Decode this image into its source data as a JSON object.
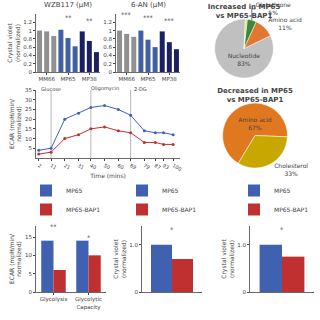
{
  "chart_data": [
    {
      "type": "bar",
      "title": "WZB117 (μM)",
      "categories": [
        null,
        "MM66",
        null,
        null,
        "MP65",
        null,
        null,
        "MP38",
        null
      ],
      "values": [
        1.0,
        0.98,
        0.87,
        1.02,
        0.82,
        0.62,
        0.98,
        0.75,
        0.48
      ],
      "colors": [
        "#909090",
        "#909090",
        "#909090",
        "#4060a0",
        "#4060a0",
        "#4060a0",
        "#1a2060",
        "#1a2060",
        "#1a2060"
      ],
      "ylabel": "Crystal violet\n(normalized)",
      "ylim": [
        0,
        1.4
      ],
      "yticks": [
        0,
        0.2,
        0.4,
        0.6,
        0.8,
        1,
        1.2
      ],
      "grid": false,
      "annotations": [
        {
          "text": "**",
          "x": 4,
          "y": 1.16
        },
        {
          "text": "**",
          "x": 7,
          "y": 1.09
        }
      ]
    },
    {
      "type": "bar",
      "title": "6-AN (μM)",
      "categories": [
        null,
        "MM66",
        null,
        null,
        "MP65",
        null,
        null,
        "MP38",
        null
      ],
      "values": [
        1.0,
        0.92,
        0.85,
        1.0,
        0.78,
        0.6,
        0.98,
        0.72,
        0.55
      ],
      "colors": [
        "#909090",
        "#909090",
        "#909090",
        "#4060a0",
        "#4060a0",
        "#4060a0",
        "#1a2060",
        "#1a2060",
        "#1a2060"
      ],
      "ylim": [
        0,
        1.4
      ],
      "yticks": [
        0,
        0.2,
        0.4,
        0.6,
        0.8,
        1,
        1.2
      ],
      "grid": false,
      "annotations": [
        {
          "text": "***",
          "x": 4,
          "y": 1.16
        },
        {
          "text": "***",
          "x": 7,
          "y": 1.09
        },
        {
          "text": "***",
          "x": 1,
          "y": 1.22
        }
      ]
    },
    {
      "type": "line",
      "x": [
        2,
        11,
        21,
        31,
        40,
        50,
        60,
        69,
        79,
        87,
        93,
        100
      ],
      "series": [
        {
          "color": "#4060c0",
          "values": [
            4,
            5,
            20,
            23,
            26,
            27,
            25,
            22,
            14,
            13,
            13,
            12
          ]
        },
        {
          "color": "#c03030",
          "values": [
            2,
            3,
            10,
            12,
            15,
            16,
            14,
            13,
            8,
            8,
            7,
            7
          ]
        }
      ],
      "marker": "circle",
      "xlim": [
        0,
        105
      ],
      "xticks": [
        2,
        11,
        21,
        31,
        40,
        50,
        60,
        69,
        79,
        87,
        93,
        100
      ],
      "ylim": [
        0,
        35
      ],
      "yticks": [
        5,
        10,
        15,
        20,
        25,
        30,
        35
      ],
      "xlabel": "Time (mins)",
      "ylabel": "ECAR (mpH/min/\nnormalized)",
      "vlines": [
        11,
        40,
        69
      ],
      "grid": false,
      "annotations": [
        {
          "text": "Glucose",
          "x": 2,
          "y": 33
        },
        {
          "text": "Oligomycin",
          "x": 39,
          "y": 33
        },
        {
          "text": "2-DG",
          "x": 70,
          "y": 33
        }
      ]
    },
    {
      "type": "bar",
      "categories": [
        "Glycolysis",
        "Glycolytic\nCapacity"
      ],
      "series": [
        {
          "name": "MP65",
          "color": "#4060b0",
          "values": [
            14,
            14
          ]
        },
        {
          "name": "MP65-BAP1",
          "color": "#c03030",
          "values": [
            6,
            10
          ]
        }
      ],
      "ylabel": "ECAR (mpH/min/\nnormalized)",
      "ylim": [
        0,
        18
      ],
      "yticks": [
        0,
        5,
        10,
        15
      ],
      "legend": "upper right",
      "grid": false,
      "annotations": [
        {
          "text": "**",
          "x": 0,
          "y": 16.2
        },
        {
          "text": "*",
          "x": 1,
          "y": 13.2
        }
      ]
    },
    {
      "type": "pie",
      "title": "Increased in MP65\nvs MP65-BAP1",
      "categories": [
        "Nucleotide",
        "Amino acid",
        "Glutathione",
        null
      ],
      "values": [
        83,
        11,
        5,
        1
      ],
      "value_labels": [
        "83%",
        "11%",
        "5%",
        null
      ],
      "colors": [
        "#c0c0c0",
        "#e07830",
        "#3a8a3a",
        "#d4e060"
      ]
    },
    {
      "type": "pie",
      "title": "Decreased in MP65\nvs MP65-BAP1",
      "categories": [
        "Amino acid",
        "Cholesterol"
      ],
      "values": [
        67,
        33
      ],
      "value_labels": [
        "67%",
        "33%"
      ],
      "colors": [
        "#e07820",
        "#c8a800"
      ]
    },
    {
      "type": "bar",
      "categories": [
        null
      ],
      "series": [
        {
          "name": "MP65",
          "color": "#4060b0",
          "values": [
            1.0
          ]
        },
        {
          "name": "MP65-BAP1",
          "color": "#c03030",
          "values": [
            0.7
          ]
        }
      ],
      "ylabel": "Crystal violet\n(normalized)",
      "ylim": [
        0,
        1.4
      ],
      "yticks": [
        0,
        {
          "value": 1.0,
          "label": "1.0"
        }
      ],
      "tick_labels": "y",
      "legend": "upper right",
      "grid": false,
      "annotations": [
        {
          "text": "*",
          "x": 0,
          "y": 1.18
        }
      ]
    },
    {
      "type": "bar",
      "categories": [
        null
      ],
      "series": [
        {
          "name": "MP65",
          "color": "#4060b0",
          "values": [
            1.0
          ]
        },
        {
          "name": "MP65-BAP1",
          "color": "#c03030",
          "values": [
            0.75
          ]
        }
      ],
      "ylabel": "Crystal violet\n(normalized)",
      "ylim": [
        0,
        1.4
      ],
      "yticks": [
        0,
        {
          "value": 1.0,
          "label": "1.0"
        }
      ],
      "tick_labels": "y",
      "legend": "upper right",
      "grid": false,
      "annotations": [
        {
          "text": "*",
          "x": 0,
          "y": 1.18
        }
      ]
    }
  ]
}
